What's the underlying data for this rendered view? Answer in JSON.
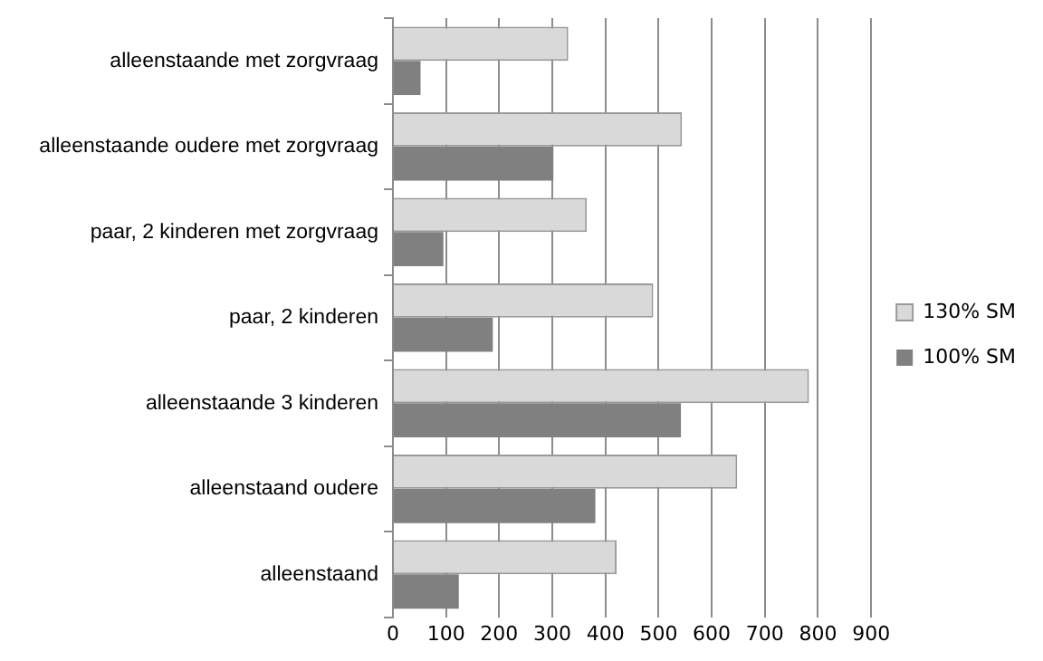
{
  "chart_data": {
    "type": "bar",
    "orientation": "horizontal",
    "categories": [
      "alleenstaande met zorgvraag",
      "alleenstaande oudere met zorgvraag",
      "paar, 2 kinderen met zorgvraag",
      "paar, 2 kinderen",
      "alleenstaande 3 kinderen",
      "alleenstaand oudere",
      "alleenstaand"
    ],
    "series": [
      {
        "name": "130% SM",
        "color": "#d9d9d9",
        "values": [
          330,
          544,
          365,
          490,
          783,
          648,
          421
        ]
      },
      {
        "name": "100% SM",
        "color": "#808080",
        "values": [
          52,
          302,
          95,
          188,
          542,
          381,
          124
        ]
      }
    ],
    "xlim": [
      0,
      900
    ],
    "xticks": [
      0,
      100,
      200,
      300,
      400,
      500,
      600,
      700,
      800,
      900
    ],
    "grid": "x",
    "legend": "right"
  }
}
